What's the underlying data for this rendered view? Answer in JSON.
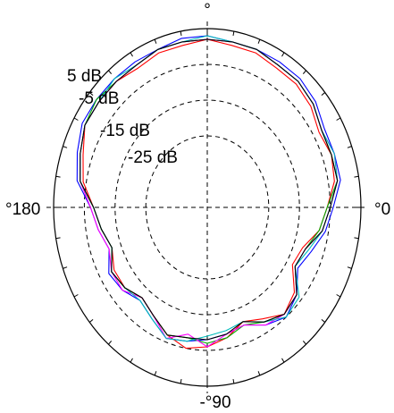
{
  "chart_data": {
    "type": "line",
    "subtype": "polar",
    "title": "",
    "xlabel": "",
    "ylabel": "",
    "angle_unit": "degrees",
    "angle_labels": [
      {
        "angle": 90,
        "text": "°"
      },
      {
        "angle": 0,
        "text": "°0"
      },
      {
        "angle": 180,
        "text": "°180"
      },
      {
        "angle": -90,
        "text": "-°90"
      }
    ],
    "radial_labels": [
      "5 dB",
      "-5 dB",
      "-15 dB",
      "-25 dB"
    ],
    "radial_ticks_db": [
      5,
      -5,
      -15,
      -25
    ],
    "rlim": [
      -45,
      5
    ],
    "grid": true,
    "angles": [
      -90,
      -80,
      -70,
      -60,
      -50,
      -40,
      -30,
      -20,
      -10,
      0,
      10,
      20,
      30,
      40,
      50,
      60,
      70,
      80,
      90,
      100,
      110,
      120,
      130,
      140,
      150,
      160,
      170,
      180,
      190,
      200,
      210,
      220,
      230,
      240,
      250,
      260
    ],
    "series": [
      {
        "color": "#0000ff",
        "values": [
          -8,
          -9,
          -10,
          -7,
          -5,
          -7,
          -11,
          -9,
          -6,
          -4,
          -1,
          -1,
          -1,
          1,
          2,
          2,
          2,
          2,
          3,
          3,
          2,
          2,
          2,
          2,
          2,
          0,
          -2,
          -7,
          -9,
          -11,
          -8,
          -9,
          -11,
          -9,
          -6,
          -7
        ]
      },
      {
        "color": "#ff0000",
        "values": [
          -6,
          -8,
          -11,
          -9,
          -6,
          -8,
          -13,
          -12,
          -8,
          -6,
          -3,
          -2,
          -3,
          -1,
          0,
          0,
          1,
          1,
          2,
          1,
          1,
          0,
          1,
          1,
          1,
          -2,
          -4,
          -8,
          -10,
          -12,
          -10,
          -10,
          -12,
          -10,
          -7,
          -5
        ]
      },
      {
        "color": "#00aa00",
        "values": [
          -7,
          -8,
          -10,
          -8,
          -6,
          -7,
          -12,
          -11,
          -8,
          -6,
          -2,
          -2,
          -2,
          0,
          1,
          1,
          2,
          2,
          2,
          2,
          2,
          1,
          1,
          2,
          1,
          -1,
          -3,
          -8,
          -10,
          -12,
          -9,
          -10,
          -12,
          -10,
          -7,
          -8
        ]
      },
      {
        "color": "#ff00ff",
        "values": [
          -6,
          -9,
          -10,
          -7,
          -6,
          -7,
          -12,
          -11,
          -7,
          -5,
          -2,
          -1,
          -2,
          0,
          1,
          1,
          2,
          2,
          2,
          2,
          2,
          1,
          1,
          1,
          1,
          -1,
          -3,
          -7,
          -9,
          -11,
          -9,
          -9,
          -12,
          -10,
          -6,
          -9
        ]
      },
      {
        "color": "#00bbbb",
        "values": [
          -9,
          -10,
          -11,
          -8,
          -5,
          -6,
          -12,
          -10,
          -7,
          -5,
          -2,
          -1,
          -2,
          0,
          1,
          1,
          2,
          2,
          3,
          2,
          2,
          1,
          2,
          1,
          1,
          -1,
          -3,
          -8,
          -10,
          -12,
          -9,
          -10,
          -11,
          -9,
          -6,
          -7
        ]
      },
      {
        "color": "#000000",
        "values": [
          -8,
          -9,
          -11,
          -8,
          -6,
          -7,
          -12,
          -11,
          -7,
          -5,
          -2,
          -2,
          -2,
          0,
          1,
          1,
          2,
          2,
          2,
          2,
          2,
          1,
          1,
          1,
          1,
          -1,
          -3,
          -8,
          -10,
          -12,
          -9,
          -10,
          -12,
          -10,
          -7,
          -8
        ]
      }
    ]
  }
}
